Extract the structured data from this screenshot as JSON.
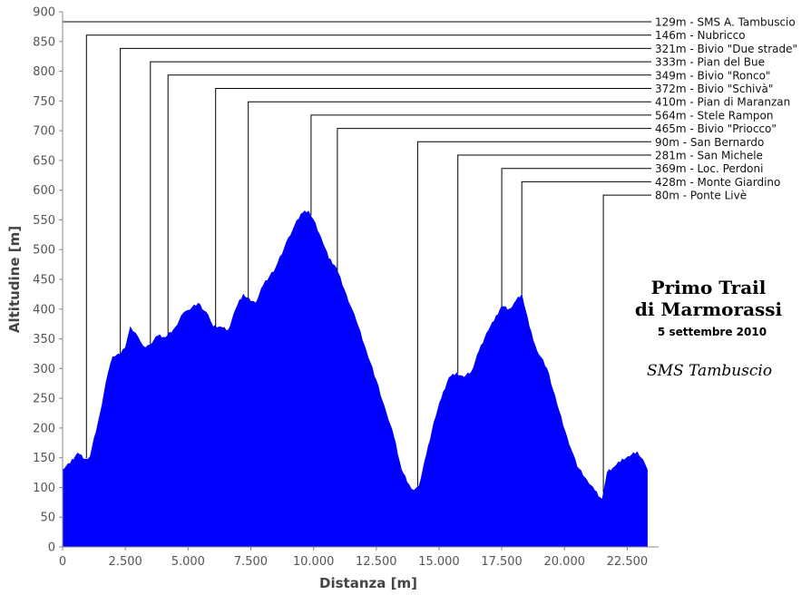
{
  "chart_data": {
    "type": "area",
    "xlabel": "Distanza [m]",
    "ylabel": "Altitudine [m]",
    "xlim": [
      0,
      23750
    ],
    "ylim": [
      0,
      900
    ],
    "x_ticks": [
      0,
      2500,
      5000,
      7500,
      10000,
      12500,
      15000,
      17500,
      20000,
      22500
    ],
    "x_tick_labels": [
      "0",
      "2.500",
      "5.000",
      "7.500",
      "10.000",
      "12.500",
      "15.000",
      "17.500",
      "20.000",
      "22.500"
    ],
    "y_ticks": [
      0,
      50,
      100,
      150,
      200,
      250,
      300,
      350,
      400,
      450,
      500,
      550,
      600,
      650,
      700,
      750,
      800,
      850,
      900
    ],
    "y_tick_labels": [
      "0",
      "50",
      "100",
      "150",
      "200",
      "250",
      "300",
      "350",
      "400",
      "450",
      "500",
      "550",
      "600",
      "650",
      "700",
      "750",
      "800",
      "850",
      "900"
    ],
    "grid": false,
    "colors": {
      "fill": "#0000ff",
      "axis": "#888888",
      "leader": "#000000"
    },
    "profile": {
      "x": [
        0,
        300,
        600,
        900,
        1100,
        1500,
        1800,
        2000,
        2300,
        2500,
        2700,
        2900,
        3100,
        3300,
        3500,
        3800,
        4100,
        4500,
        4800,
        5000,
        5400,
        5800,
        6000,
        6300,
        6600,
        6900,
        7200,
        7500,
        7700,
        8000,
        8500,
        9000,
        9500,
        9800,
        10000,
        10300,
        10600,
        10900,
        11300,
        11700,
        12100,
        12500,
        12900,
        13200,
        13500,
        13800,
        14000,
        14200,
        14500,
        14800,
        15100,
        15400,
        15700,
        16000,
        16300,
        16600,
        16900,
        17200,
        17500,
        17800,
        18000,
        18300,
        18600,
        18900,
        19300,
        19700,
        20100,
        20500,
        20900,
        21200,
        21500,
        21700,
        22000,
        22300,
        22600,
        22900,
        23200,
        23300
      ],
      "y": [
        130,
        140,
        158,
        148,
        152,
        225,
        290,
        320,
        323,
        335,
        370,
        360,
        345,
        335,
        340,
        355,
        352,
        370,
        393,
        398,
        410,
        390,
        370,
        370,
        365,
        400,
        425,
        413,
        410,
        440,
        470,
        520,
        560,
        565,
        550,
        520,
        485,
        470,
        425,
        380,
        330,
        280,
        225,
        185,
        130,
        105,
        95,
        102,
        155,
        210,
        250,
        285,
        293,
        285,
        295,
        330,
        360,
        380,
        405,
        400,
        410,
        425,
        370,
        330,
        300,
        240,
        185,
        135,
        112,
        95,
        80,
        125,
        135,
        148,
        152,
        160,
        140,
        130
      ]
    },
    "waypoints": [
      {
        "x": 0,
        "elevation": "129m",
        "label": "129m - SMS A. Tambuscio"
      },
      {
        "x": 950,
        "elevation": "146m",
        "label": "146m - Nubricco"
      },
      {
        "x": 2300,
        "elevation": "321m",
        "label": "321m - Bivio \"Due strade\""
      },
      {
        "x": 3500,
        "elevation": "333m",
        "label": "333m - Pian del Bue"
      },
      {
        "x": 4200,
        "elevation": "349m",
        "label": "349m - Bivio \"Ronco\""
      },
      {
        "x": 6100,
        "elevation": "372m",
        "label": "372m - Bivio \"Schivà\""
      },
      {
        "x": 7400,
        "elevation": "410m",
        "label": "410m - Pian di Maranzan"
      },
      {
        "x": 9900,
        "elevation": "564m",
        "label": "564m - Stele Rampon"
      },
      {
        "x": 10950,
        "elevation": "465m",
        "label": "465m - Bivio \"Priocco\""
      },
      {
        "x": 14150,
        "elevation": "90m",
        "label": "90m - San Bernardo"
      },
      {
        "x": 15750,
        "elevation": "281m",
        "label": "281m - San Michele"
      },
      {
        "x": 17500,
        "elevation": "369m",
        "label": "369m - Loc. Perdoni"
      },
      {
        "x": 18300,
        "elevation": "428m",
        "label": "428m - Monte Giardino"
      },
      {
        "x": 21550,
        "elevation": "80m",
        "label": "80m - Ponte Livè"
      }
    ],
    "annotation": {
      "title_line1": "Primo Trail",
      "title_line2": "di Marmorassi",
      "date": "5 settembre 2010",
      "signature": "SMS Tambuscio"
    }
  }
}
